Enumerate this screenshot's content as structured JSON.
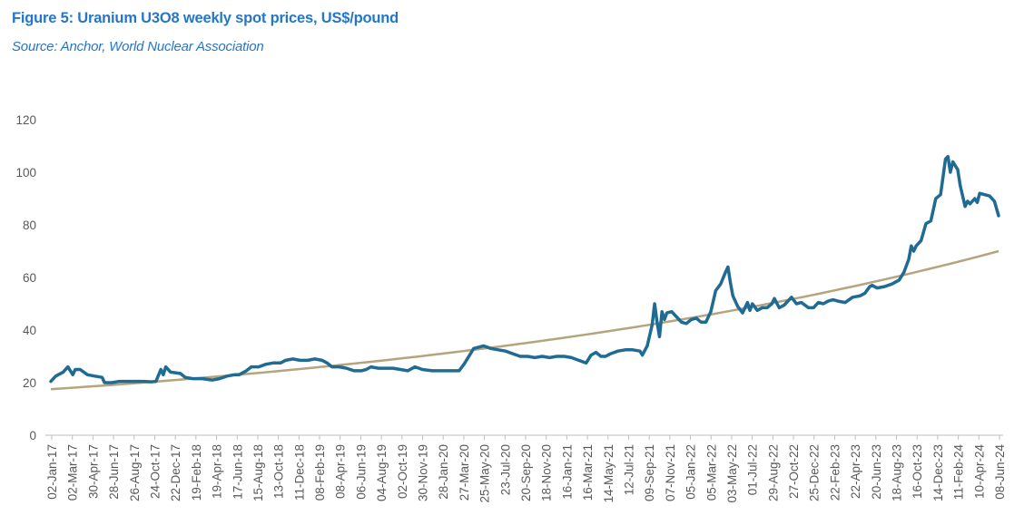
{
  "title": "Figure 5: Uranium U3O8 weekly spot prices, US$/pound",
  "source": "Source: Anchor, World Nuclear Association",
  "chart_data": {
    "type": "line",
    "title": "Figure 5: Uranium U3O8 weekly spot prices, US$/pound",
    "xlabel": "",
    "ylabel": "",
    "ylim": [
      0,
      120
    ],
    "yticks": [
      0,
      20,
      40,
      60,
      80,
      100,
      120
    ],
    "grid": false,
    "legend": "none",
    "x_range": [
      "2017-01-02",
      "2024-06-08"
    ],
    "x_tick_labels": [
      "02-Jan-17",
      "02-Mar-17",
      "30-Apr-17",
      "28-Jun-17",
      "26-Aug-17",
      "24-Oct-17",
      "22-Dec-17",
      "19-Feb-18",
      "19-Apr-18",
      "17-Jun-18",
      "15-Aug-18",
      "13-Oct-18",
      "11-Dec-18",
      "08-Feb-19",
      "08-Apr-19",
      "06-Jun-19",
      "04-Aug-19",
      "02-Oct-19",
      "30-Nov-19",
      "28-Jan-20",
      "27-Mar-20",
      "25-May-20",
      "23-Jul-20",
      "20-Sep-20",
      "18-Nov-20",
      "16-Jan-21",
      "16-Mar-21",
      "14-May-21",
      "12-Jul-21",
      "09-Sep-21",
      "07-Nov-21",
      "05-Jan-22",
      "05-Mar-22",
      "03-May-22",
      "01-Jul-22",
      "29-Aug-22",
      "27-Oct-22",
      "25-Dec-22",
      "22-Feb-23",
      "22-Apr-23",
      "20-Jun-23",
      "18-Aug-23",
      "16-Oct-23",
      "14-Dec-23",
      "11-Feb-24",
      "10-Apr-24",
      "08-Jun-24"
    ],
    "series": [
      {
        "color": "#1f6b93",
        "points": [
          [
            "2017-01-02",
            20.5
          ],
          [
            "2017-01-16",
            22.5
          ],
          [
            "2017-02-06",
            24.0
          ],
          [
            "2017-02-20",
            26.0
          ],
          [
            "2017-03-06",
            23.0
          ],
          [
            "2017-03-13",
            25.0
          ],
          [
            "2017-03-27",
            25.0
          ],
          [
            "2017-04-17",
            23.0
          ],
          [
            "2017-05-08",
            22.5
          ],
          [
            "2017-05-29",
            22.0
          ],
          [
            "2017-06-05",
            20.0
          ],
          [
            "2017-06-26",
            20.0
          ],
          [
            "2017-07-17",
            20.5
          ],
          [
            "2017-08-07",
            20.5
          ],
          [
            "2017-08-21",
            20.5
          ],
          [
            "2017-09-11",
            20.5
          ],
          [
            "2017-09-25",
            20.5
          ],
          [
            "2017-10-16",
            20.3
          ],
          [
            "2017-10-30",
            20.5
          ],
          [
            "2017-11-13",
            25.0
          ],
          [
            "2017-11-20",
            23.0
          ],
          [
            "2017-11-27",
            26.0
          ],
          [
            "2017-12-11",
            24.0
          ],
          [
            "2018-01-08",
            23.5
          ],
          [
            "2018-01-22",
            22.0
          ],
          [
            "2018-02-12",
            21.5
          ],
          [
            "2018-03-12",
            21.5
          ],
          [
            "2018-04-09",
            21.0
          ],
          [
            "2018-04-30",
            21.5
          ],
          [
            "2018-05-21",
            22.5
          ],
          [
            "2018-06-11",
            23.0
          ],
          [
            "2018-06-25",
            23.0
          ],
          [
            "2018-07-16",
            24.5
          ],
          [
            "2018-07-30",
            26.0
          ],
          [
            "2018-08-20",
            26.0
          ],
          [
            "2018-09-10",
            27.0
          ],
          [
            "2018-10-01",
            27.5
          ],
          [
            "2018-10-22",
            27.5
          ],
          [
            "2018-11-05",
            28.5
          ],
          [
            "2018-11-26",
            29.0
          ],
          [
            "2018-12-17",
            28.5
          ],
          [
            "2019-01-07",
            28.5
          ],
          [
            "2019-01-28",
            29.0
          ],
          [
            "2019-02-18",
            28.5
          ],
          [
            "2019-03-04",
            27.5
          ],
          [
            "2019-03-18",
            26.0
          ],
          [
            "2019-04-08",
            26.0
          ],
          [
            "2019-04-29",
            25.5
          ],
          [
            "2019-05-20",
            24.5
          ],
          [
            "2019-06-10",
            24.5
          ],
          [
            "2019-06-24",
            25.0
          ],
          [
            "2019-07-08",
            26.0
          ],
          [
            "2019-07-29",
            25.5
          ],
          [
            "2019-08-19",
            25.5
          ],
          [
            "2019-09-09",
            25.5
          ],
          [
            "2019-09-30",
            25.0
          ],
          [
            "2019-10-21",
            24.5
          ],
          [
            "2019-11-11",
            26.0
          ],
          [
            "2019-12-02",
            25.0
          ],
          [
            "2019-12-30",
            24.5
          ],
          [
            "2020-01-20",
            24.5
          ],
          [
            "2020-02-10",
            24.5
          ],
          [
            "2020-03-02",
            24.5
          ],
          [
            "2020-03-16",
            24.5
          ],
          [
            "2020-03-30",
            27.0
          ],
          [
            "2020-04-13",
            30.0
          ],
          [
            "2020-04-27",
            33.0
          ],
          [
            "2020-05-11",
            33.5
          ],
          [
            "2020-05-25",
            34.0
          ],
          [
            "2020-06-15",
            33.0
          ],
          [
            "2020-07-06",
            32.5
          ],
          [
            "2020-07-27",
            32.0
          ],
          [
            "2020-08-17",
            31.0
          ],
          [
            "2020-09-07",
            30.0
          ],
          [
            "2020-09-28",
            30.0
          ],
          [
            "2020-10-19",
            29.5
          ],
          [
            "2020-11-09",
            30.0
          ],
          [
            "2020-11-30",
            29.5
          ],
          [
            "2020-12-21",
            30.0
          ],
          [
            "2021-01-11",
            30.0
          ],
          [
            "2021-02-01",
            29.5
          ],
          [
            "2021-02-22",
            28.5
          ],
          [
            "2021-03-15",
            27.5
          ],
          [
            "2021-03-29",
            30.5
          ],
          [
            "2021-04-12",
            31.5
          ],
          [
            "2021-04-26",
            30.0
          ],
          [
            "2021-05-10",
            30.0
          ],
          [
            "2021-05-24",
            31.0
          ],
          [
            "2021-06-14",
            32.0
          ],
          [
            "2021-07-05",
            32.5
          ],
          [
            "2021-07-26",
            32.5
          ],
          [
            "2021-08-16",
            32.0
          ],
          [
            "2021-08-23",
            30.5
          ],
          [
            "2021-09-06",
            34.0
          ],
          [
            "2021-09-20",
            42.0
          ],
          [
            "2021-09-27",
            50.0
          ],
          [
            "2021-10-04",
            43.0
          ],
          [
            "2021-10-11",
            37.5
          ],
          [
            "2021-10-18",
            47.0
          ],
          [
            "2021-10-25",
            44.0
          ],
          [
            "2021-11-01",
            46.5
          ],
          [
            "2021-11-15",
            47.0
          ],
          [
            "2021-11-29",
            45.0
          ],
          [
            "2021-12-13",
            43.0
          ],
          [
            "2021-12-27",
            42.5
          ],
          [
            "2022-01-10",
            44.0
          ],
          [
            "2022-01-24",
            44.5
          ],
          [
            "2022-02-07",
            43.0
          ],
          [
            "2022-02-21",
            43.0
          ],
          [
            "2022-03-07",
            47.0
          ],
          [
            "2022-03-21",
            55.0
          ],
          [
            "2022-04-04",
            57.5
          ],
          [
            "2022-04-18",
            62.0
          ],
          [
            "2022-04-25",
            64.0
          ],
          [
            "2022-05-02",
            58.0
          ],
          [
            "2022-05-09",
            53.0
          ],
          [
            "2022-05-23",
            49.0
          ],
          [
            "2022-06-06",
            46.5
          ],
          [
            "2022-06-20",
            50.5
          ],
          [
            "2022-06-27",
            47.5
          ],
          [
            "2022-07-04",
            50.0
          ],
          [
            "2022-07-18",
            47.5
          ],
          [
            "2022-08-01",
            48.5
          ],
          [
            "2022-08-15",
            48.5
          ],
          [
            "2022-08-29",
            50.0
          ],
          [
            "2022-09-05",
            52.0
          ],
          [
            "2022-09-19",
            48.5
          ],
          [
            "2022-10-03",
            49.5
          ],
          [
            "2022-10-24",
            52.5
          ],
          [
            "2022-11-07",
            50.0
          ],
          [
            "2022-11-21",
            50.5
          ],
          [
            "2022-12-12",
            48.5
          ],
          [
            "2022-12-26",
            48.5
          ],
          [
            "2023-01-09",
            50.5
          ],
          [
            "2023-01-23",
            50.0
          ],
          [
            "2023-02-06",
            51.0
          ],
          [
            "2023-02-20",
            51.5
          ],
          [
            "2023-03-06",
            51.0
          ],
          [
            "2023-03-27",
            50.5
          ],
          [
            "2023-04-17",
            52.5
          ],
          [
            "2023-05-08",
            53.0
          ],
          [
            "2023-05-22",
            54.0
          ],
          [
            "2023-06-05",
            56.5
          ],
          [
            "2023-06-12",
            57.0
          ],
          [
            "2023-06-26",
            56.0
          ],
          [
            "2023-07-17",
            56.5
          ],
          [
            "2023-08-07",
            57.5
          ],
          [
            "2023-08-28",
            59.0
          ],
          [
            "2023-09-11",
            62.0
          ],
          [
            "2023-09-25",
            67.0
          ],
          [
            "2023-10-02",
            72.0
          ],
          [
            "2023-10-09",
            70.0
          ],
          [
            "2023-10-16",
            72.0
          ],
          [
            "2023-10-30",
            74.0
          ],
          [
            "2023-11-13",
            80.5
          ],
          [
            "2023-11-27",
            81.5
          ],
          [
            "2023-12-11",
            90.0
          ],
          [
            "2023-12-25",
            91.5
          ],
          [
            "2024-01-08",
            105.0
          ],
          [
            "2024-01-15",
            106.0
          ],
          [
            "2024-01-22",
            100.0
          ],
          [
            "2024-01-29",
            104.0
          ],
          [
            "2024-02-12",
            101.0
          ],
          [
            "2024-02-19",
            95.0
          ],
          [
            "2024-03-04",
            87.0
          ],
          [
            "2024-03-11",
            89.0
          ],
          [
            "2024-03-18",
            88.0
          ],
          [
            "2024-04-01",
            90.0
          ],
          [
            "2024-04-08",
            88.5
          ],
          [
            "2024-04-15",
            92.0
          ],
          [
            "2024-04-29",
            91.5
          ],
          [
            "2024-05-13",
            91.0
          ],
          [
            "2024-05-27",
            89.0
          ],
          [
            "2024-06-08",
            83.5
          ]
        ]
      },
      {
        "color": "#b5a47e",
        "curve": "exponential",
        "points": [
          [
            "2017-01-02",
            17.5
          ],
          [
            "2024-06-08",
            70.0
          ]
        ]
      }
    ]
  }
}
